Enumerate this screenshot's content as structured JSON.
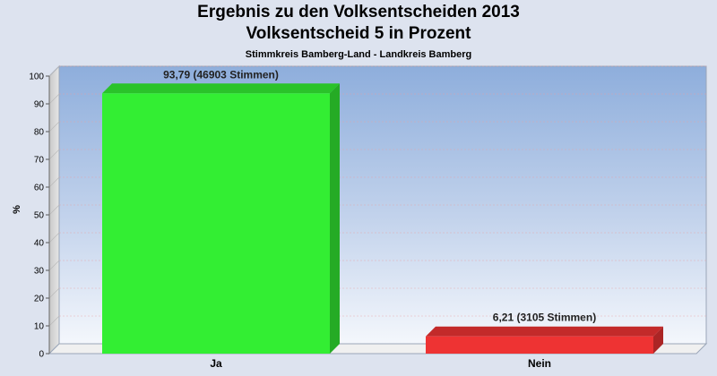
{
  "chart_data": {
    "type": "bar",
    "title": "Ergebnis zu den Volksentscheiden 2013",
    "title_line2": "Volksentscheid 5 in Prozent",
    "subtitle": "Stimmkreis Bamberg-Land - Landkreis Bamberg",
    "ylabel": "%",
    "xlabel": "",
    "ylim": [
      0,
      100
    ],
    "yticks": [
      "0",
      "10",
      "20",
      "30",
      "40",
      "50",
      "60",
      "70",
      "80",
      "90",
      "100"
    ],
    "categories": [
      "Ja",
      "Nein"
    ],
    "values": [
      93.79,
      6.21
    ],
    "data_labels": [
      "93,79 (46903 Stimmen)",
      "6,21 (3105 Stimmen)"
    ],
    "colors": [
      "#33ee33",
      "#ee3333"
    ],
    "grid": true,
    "legend": "none"
  }
}
